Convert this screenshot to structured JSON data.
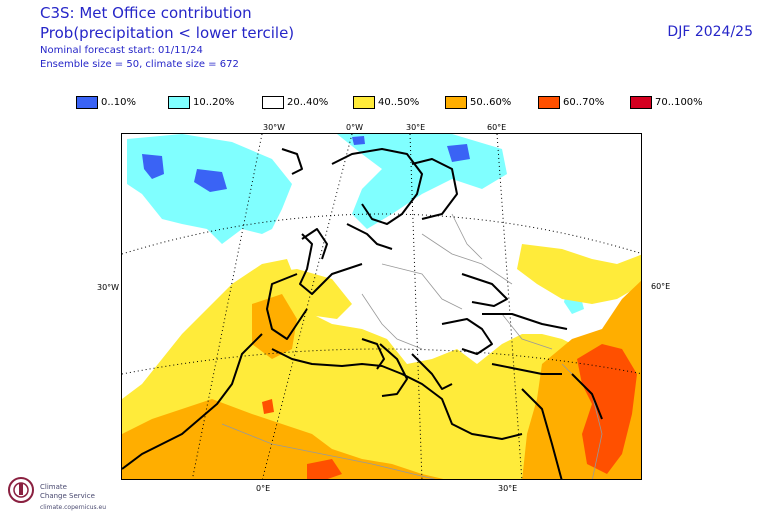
{
  "header": {
    "title": "C3S: Met Office contribution",
    "subtitle": "Prob(precipitation < lower tercile)",
    "forecast_start": "Nominal forecast start: 01/11/24",
    "ensemble": "Ensemble size = 50, climate size = 672",
    "season": "DJF 2024/25"
  },
  "legend": [
    {
      "label": "0..10%",
      "color": "#3a63f5"
    },
    {
      "label": "10..20%",
      "color": "#80ffff"
    },
    {
      "label": "20..40%",
      "color": "#ffffff"
    },
    {
      "label": "40..50%",
      "color": "#ffeb3a"
    },
    {
      "label": "50..60%",
      "color": "#ffae00"
    },
    {
      "label": "60..70%",
      "color": "#ff5000"
    },
    {
      "label": "70..100%",
      "color": "#d40020"
    }
  ],
  "axes": {
    "top": [
      "30°W",
      "0°W",
      "30°E",
      "60°E"
    ],
    "left": "30°W",
    "right": "60°E",
    "bottom": [
      "0°E",
      "30°E"
    ]
  },
  "logo": {
    "line1": "Climate",
    "line2": "Change Service",
    "url": "climate.copernicus.eu"
  }
}
